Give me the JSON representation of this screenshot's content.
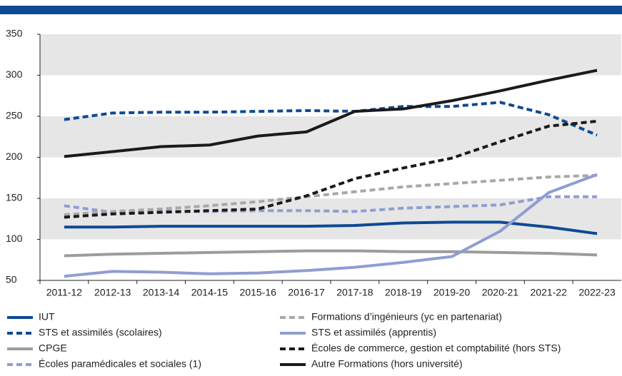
{
  "chart_data": {
    "type": "line",
    "categories": [
      "2011-12",
      "2012-13",
      "2013-14",
      "2014-15",
      "2015-16",
      "2016-17",
      "2017-18",
      "2018-19",
      "2019-20",
      "2020-21",
      "2021-22",
      "2022-23"
    ],
    "ylim": [
      50,
      350
    ],
    "yticks": [
      50,
      100,
      150,
      200,
      250,
      300,
      350
    ],
    "bands": true,
    "series": [
      {
        "name": "IUT",
        "color": "#0d4a94",
        "dash": false,
        "values": [
          115,
          115,
          116,
          116,
          116,
          116,
          117,
          120,
          121,
          121,
          115,
          107
        ]
      },
      {
        "name": "STS et assimilés (scolaires)",
        "color": "#0d4a94",
        "dash": true,
        "values": [
          246,
          254,
          255,
          255,
          256,
          257,
          256,
          262,
          262,
          267,
          252,
          227
        ]
      },
      {
        "name": "CPGE",
        "color": "#9c9c9c",
        "dash": false,
        "values": [
          80,
          82,
          83,
          84,
          85,
          86,
          86,
          85,
          85,
          84,
          83,
          81
        ]
      },
      {
        "name": "Écoles paramédicales et sociales (1)",
        "color": "#8f9dd2",
        "dash": true,
        "values": [
          141,
          133,
          134,
          134,
          135,
          135,
          134,
          138,
          140,
          142,
          152,
          152
        ]
      },
      {
        "name": "Formations d’ingénieurs (yc en partenariat)",
        "color": "#a8a8a8",
        "dash": true,
        "values": [
          130,
          134,
          137,
          141,
          146,
          152,
          158,
          164,
          168,
          172,
          176,
          178
        ]
      },
      {
        "name": "STS et assimilés (apprentis)",
        "color": "#8f9dd2",
        "dash": false,
        "values": [
          55,
          61,
          60,
          58,
          59,
          62,
          66,
          72,
          79,
          110,
          157,
          179
        ]
      },
      {
        "name": "Écoles de commerce, gestion et comptabilité (hors STS)",
        "color": "#1a1a1a",
        "dash": true,
        "values": [
          127,
          131,
          133,
          135,
          137,
          153,
          174,
          187,
          199,
          219,
          238,
          244
        ]
      },
      {
        "name": "Autre Formations (hors université)",
        "color": "#1a1a1a",
        "dash": false,
        "values": [
          201,
          207,
          213,
          215,
          226,
          231,
          256,
          259,
          269,
          281,
          294,
          306
        ]
      }
    ]
  }
}
